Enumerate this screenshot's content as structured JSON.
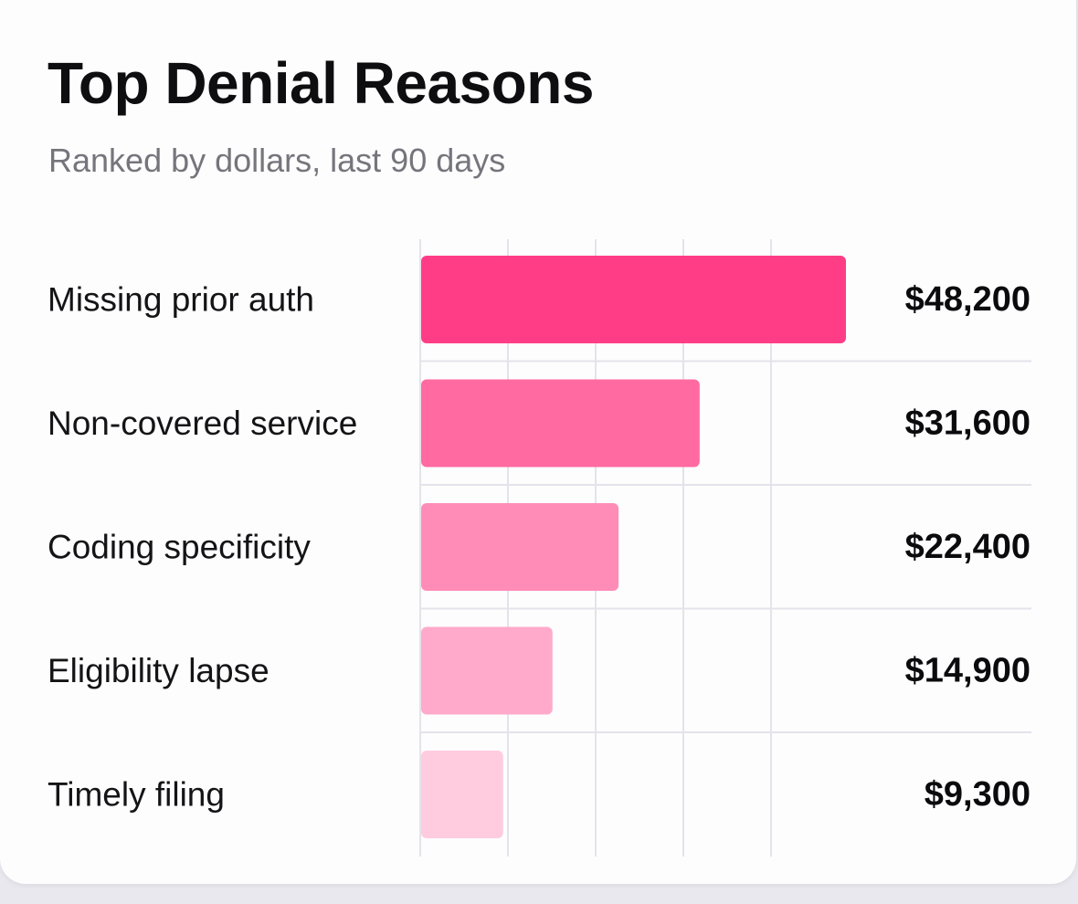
{
  "card": {
    "title": "Top Denial Reasons",
    "subtitle": "Ranked by dollars, last 90 days"
  },
  "colors": {
    "bar_gradient": [
      "#ff3d86",
      "#ff6aa1",
      "#ff8cb7",
      "#ffaacb",
      "#ffcbde"
    ],
    "grid": "#e4e3ea",
    "text": "#141416",
    "subtitle": "#75757c"
  },
  "chart_data": {
    "type": "bar",
    "orientation": "horizontal",
    "title": "Top Denial Reasons",
    "subtitle": "Ranked by dollars, last 90 days",
    "categories": [
      "Missing prior auth",
      "Non-covered service",
      "Coding specificity",
      "Eligibility lapse",
      "Timely filing"
    ],
    "values": [
      48200,
      31600,
      22400,
      14900,
      9300
    ],
    "value_labels": [
      "$48,200",
      "$31,600",
      "$22,400",
      "$14,900",
      "$9,300"
    ],
    "xlim": [
      0,
      50000
    ],
    "grid": true,
    "legend": "none"
  }
}
